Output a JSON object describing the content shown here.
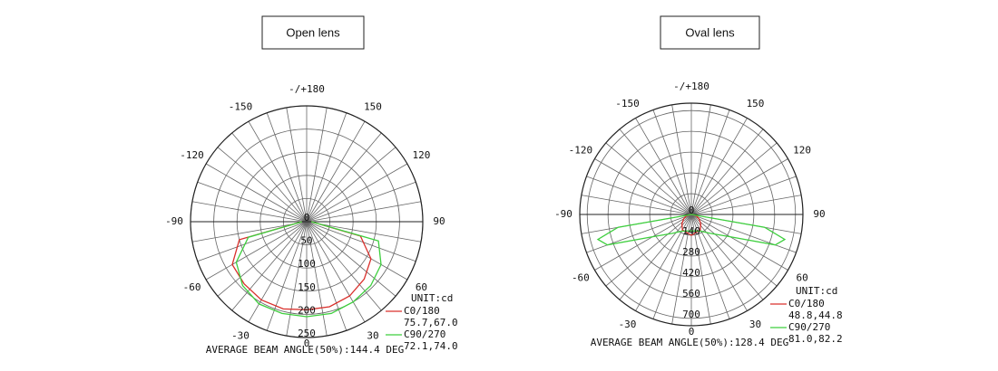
{
  "chart_data": [
    {
      "type": "polar",
      "title": "Open lens",
      "angle_ticks": [
        {
          "value": 180,
          "label": "-/+180"
        },
        -150,
        150,
        -120,
        120,
        -90,
        90,
        -60,
        60,
        -30,
        30,
        0
      ],
      "rlim": [
        0,
        250
      ],
      "rticks": [
        0,
        50,
        100,
        150,
        200,
        250
      ],
      "unit": "UNIT:cd",
      "angles": [
        -90,
        -75,
        -60,
        -45,
        -30,
        -15,
        0,
        15,
        30,
        45,
        60,
        75,
        90
      ],
      "series": [
        {
          "name": "C0/180",
          "color": "#d9302c",
          "beam": "75.7,67.0",
          "values": [
            10,
            150,
            185,
            190,
            195,
            195,
            190,
            190,
            185,
            175,
            160,
            120,
            10
          ]
        },
        {
          "name": "C90/270",
          "color": "#3ecf3e",
          "beam": "72.1,74.0",
          "values": [
            10,
            130,
            175,
            195,
            205,
            205,
            205,
            205,
            200,
            195,
            185,
            160,
            10
          ]
        }
      ],
      "footer": "AVERAGE BEAM ANGLE(50%):144.4 DEG"
    },
    {
      "type": "polar",
      "title": "Oval lens",
      "angle_ticks": [
        {
          "value": 180,
          "label": "-/+180"
        },
        -150,
        150,
        -120,
        120,
        -90,
        90,
        -60,
        60,
        -30,
        30,
        0
      ],
      "rlim": [
        0,
        750
      ],
      "rticks": [
        0,
        140,
        280,
        420,
        560,
        700
      ],
      "unit": "UNIT:cd",
      "angles": [
        -90,
        -80,
        -75,
        -70,
        -60,
        -45,
        -30,
        0,
        30,
        45,
        60,
        70,
        75,
        80,
        90
      ],
      "series": [
        {
          "name": "C0/180",
          "color": "#d9302c",
          "beam": "48.8,44.8",
          "values": [
            0,
            20,
            30,
            40,
            60,
            90,
            120,
            140,
            120,
            90,
            60,
            40,
            30,
            20,
            0
          ]
        },
        {
          "name": "C90/270",
          "color": "#3ecf3e",
          "beam": "81.0,82.2",
          "values": [
            0,
            500,
            650,
            600,
            300,
            180,
            130,
            110,
            130,
            180,
            300,
            600,
            650,
            500,
            0
          ]
        }
      ],
      "footer": "AVERAGE BEAM ANGLE(50%):128.4 DEG"
    }
  ]
}
